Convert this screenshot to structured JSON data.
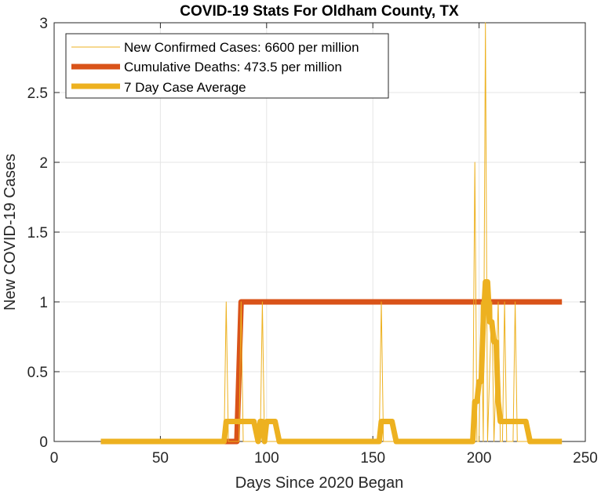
{
  "chart_data": {
    "type": "line",
    "title": "COVID-19 Stats For Oldham County, TX",
    "xlabel": "Days Since 2020 Began",
    "ylabel": "New COVID-19 Cases",
    "xlim": [
      0,
      250
    ],
    "ylim": [
      0,
      3
    ],
    "xticks": [
      0,
      50,
      100,
      150,
      200,
      250
    ],
    "yticks": [
      0,
      0.5,
      1,
      1.5,
      2,
      2.5,
      3
    ],
    "xtick_labels": [
      "0",
      "50",
      "100",
      "150",
      "200",
      "250"
    ],
    "ytick_labels": [
      "0",
      "0.5",
      "1",
      "1.5",
      "2",
      "2.5",
      "3"
    ],
    "grid": true,
    "legend_position": "top-left",
    "series": [
      {
        "name": "New Confirmed Cases: 6600 per million",
        "color": "#EDB120",
        "points": [
          [
            22,
            0
          ],
          [
            80,
            0
          ],
          [
            81,
            1
          ],
          [
            82,
            0
          ],
          [
            87,
            0
          ],
          [
            88,
            1
          ],
          [
            89,
            0
          ],
          [
            97,
            0
          ],
          [
            98,
            1
          ],
          [
            99,
            0
          ],
          [
            153,
            0
          ],
          [
            154,
            1
          ],
          [
            155,
            0
          ],
          [
            197,
            0
          ],
          [
            198,
            2
          ],
          [
            199,
            0
          ],
          [
            200,
            0
          ],
          [
            201,
            1
          ],
          [
            202,
            0
          ],
          [
            203,
            3
          ],
          [
            204,
            0
          ],
          [
            206,
            1
          ],
          [
            207,
            0
          ],
          [
            209,
            1
          ],
          [
            210,
            0
          ],
          [
            211,
            0
          ],
          [
            212,
            1
          ],
          [
            213,
            0
          ],
          [
            216,
            0
          ],
          [
            217,
            1
          ],
          [
            218,
            0
          ],
          [
            239,
            0
          ]
        ]
      },
      {
        "name": "Cumulative Deaths: 473.5 per million",
        "color": "#D95319",
        "points": [
          [
            22,
            0
          ],
          [
            86,
            0
          ],
          [
            88,
            1
          ],
          [
            239,
            1
          ]
        ]
      },
      {
        "name": "7 Day Case Average",
        "color": "#EDB120",
        "points": [
          [
            22,
            0
          ],
          [
            80,
            0
          ],
          [
            81,
            0.143
          ],
          [
            94,
            0.143
          ],
          [
            96,
            0
          ],
          [
            97,
            0.143
          ],
          [
            98,
            0.143
          ],
          [
            99,
            0
          ],
          [
            100,
            0.143
          ],
          [
            104,
            0.143
          ],
          [
            106,
            0
          ],
          [
            153,
            0
          ],
          [
            154,
            0.143
          ],
          [
            159,
            0.143
          ],
          [
            161,
            0
          ],
          [
            197,
            0
          ],
          [
            198,
            0.286
          ],
          [
            199,
            0.286
          ],
          [
            200,
            0.429
          ],
          [
            201,
            0.429
          ],
          [
            202,
            0.857
          ],
          [
            203,
            1.143
          ],
          [
            204,
            1.143
          ],
          [
            205,
            0.857
          ],
          [
            206,
            0.857
          ],
          [
            207,
            0.714
          ],
          [
            208,
            0.714
          ],
          [
            209,
            0.286
          ],
          [
            210,
            0.143
          ],
          [
            211,
            0.143
          ],
          [
            222,
            0.143
          ],
          [
            224,
            0
          ],
          [
            239,
            0
          ]
        ]
      }
    ]
  }
}
